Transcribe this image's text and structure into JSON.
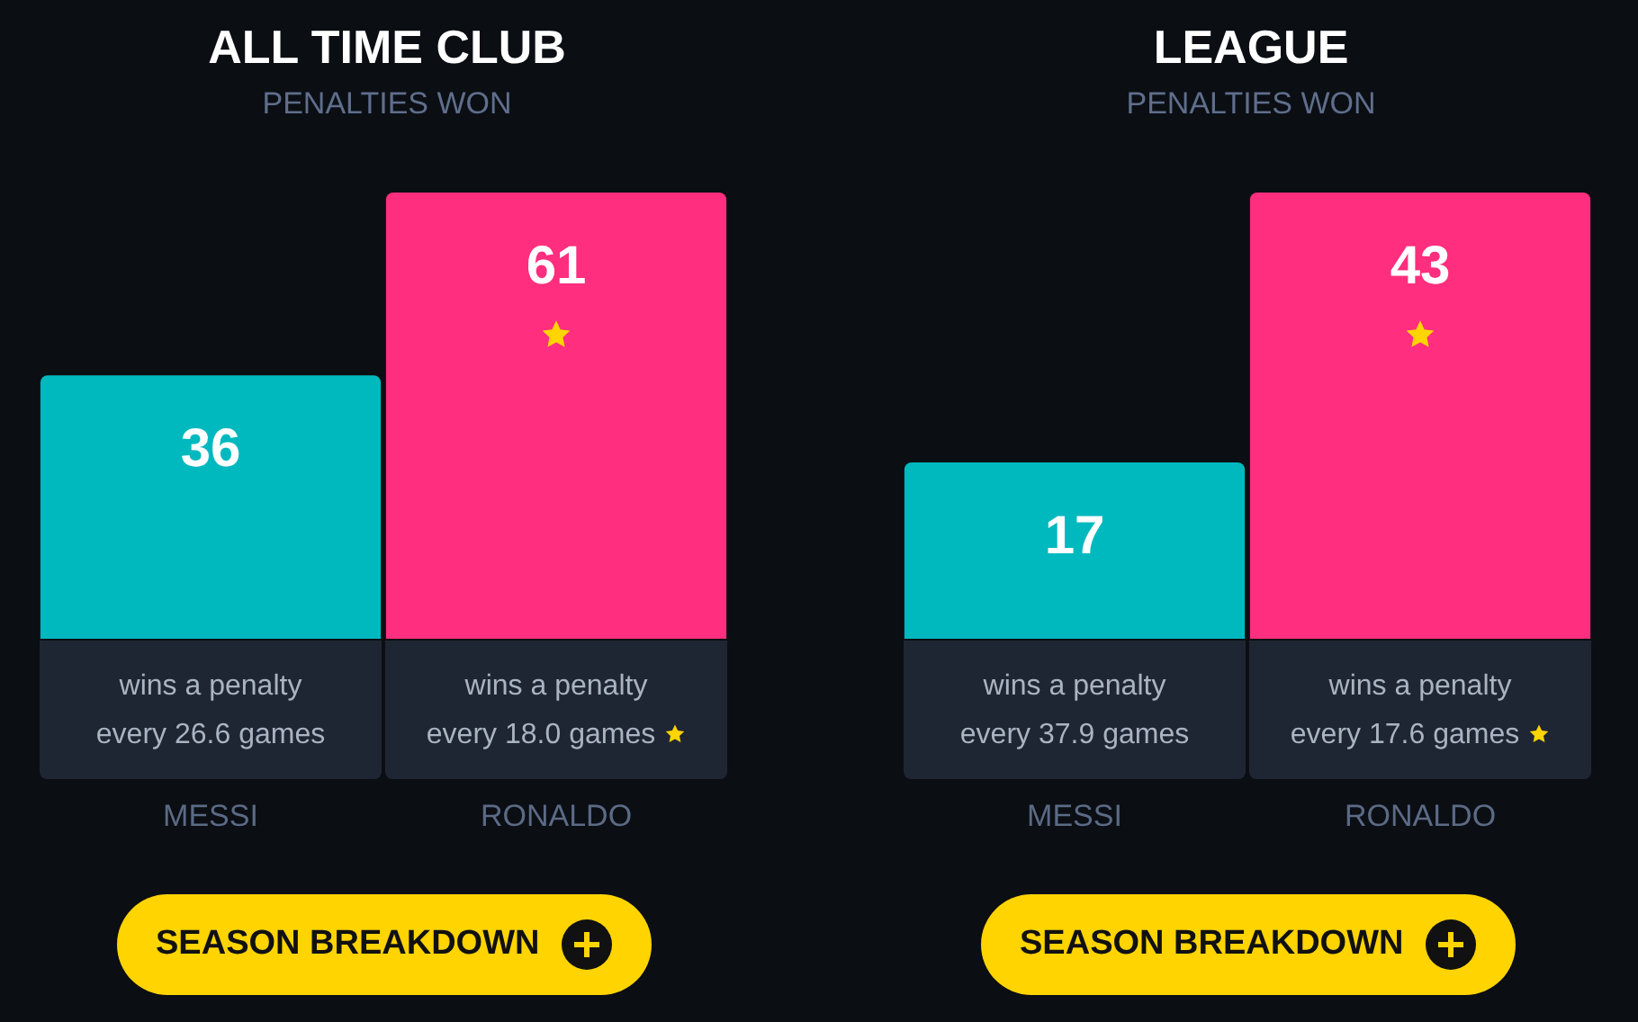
{
  "chart_data": [
    {
      "type": "bar",
      "title": "ALL TIME CLUB",
      "subtitle": "PENALTIES WON",
      "categories": [
        "MESSI",
        "RONALDO"
      ],
      "values": [
        36,
        61
      ],
      "colors": [
        "#00b9bf",
        "#ff2e7e"
      ],
      "data_labels": true,
      "tick_labels": "x",
      "annotations": [
        "wins a penalty\nevery 26.6 games",
        "wins a penalty\nevery 18.0 games",
        "SEASON BREAKDOWN"
      ]
    },
    {
      "type": "bar",
      "title": "LEAGUE",
      "subtitle": "PENALTIES WON",
      "categories": [
        "MESSI",
        "RONALDO"
      ],
      "values": [
        17,
        43
      ],
      "colors": [
        "#00b9bf",
        "#ff2e7e"
      ],
      "data_labels": true,
      "tick_labels": "x",
      "annotations": [
        "wins a penalty\nevery 37.9 games",
        "wins a penalty\nevery 17.6 games",
        "SEASON BREAKDOWN"
      ]
    }
  ]
}
